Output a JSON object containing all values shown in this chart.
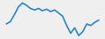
{
  "values": [
    30,
    33,
    42,
    52,
    57,
    54,
    50,
    48,
    50,
    47,
    49,
    46,
    48,
    44,
    40,
    28,
    18,
    25,
    15,
    20,
    30,
    28,
    32,
    35
  ],
  "line_color": "#2b85c8",
  "background_color": "#efefef",
  "linewidth": 1.2
}
